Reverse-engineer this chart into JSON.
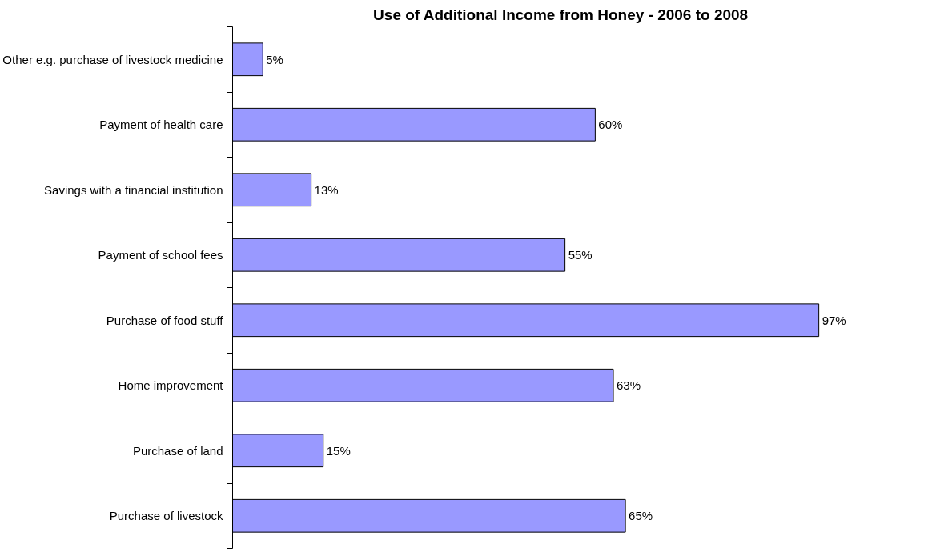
{
  "chart_data": {
    "type": "bar",
    "orientation": "horizontal",
    "title": "Use of Additional Income from Honey - 2006 to 2008",
    "categories": [
      "Other e.g. purchase of livestock medicine",
      "Payment of health care",
      "Savings with a financial institution",
      "Payment of school fees",
      "Purchase of food stuff",
      "Home improvement",
      "Purchase of land",
      "Purchase of livestock"
    ],
    "values": [
      5,
      60,
      13,
      55,
      97,
      63,
      15,
      65
    ],
    "value_labels": [
      "5%",
      "60%",
      "13%",
      "55%",
      "97%",
      "63%",
      "15%",
      "65%"
    ],
    "color": "#9999ff",
    "grid": false
  }
}
